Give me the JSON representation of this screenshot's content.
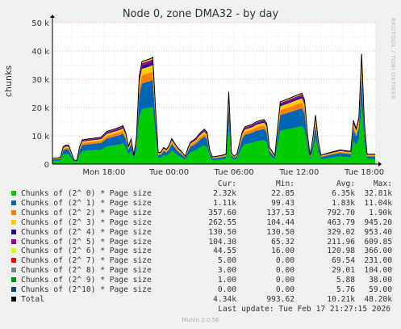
{
  "title": "Node 0, zone DMA32 - by day",
  "ylabel": "chunks",
  "side_text": "RRDTOOL / TOBI OETIKER",
  "chart_data": {
    "type": "area",
    "stacked": true,
    "ylim": [
      0,
      50000
    ],
    "yticks": [
      0,
      10000,
      20000,
      30000,
      40000,
      50000
    ],
    "ytick_labels": [
      "0",
      "10 k",
      "20 k",
      "30 k",
      "40 k",
      "50 k"
    ],
    "xlim": [
      0,
      29.75
    ],
    "xticks": [
      4.75,
      10.75,
      16.75,
      22.75,
      28.75
    ],
    "xtick_labels": [
      "Mon 18:00",
      "Tue 00:00",
      "Tue 06:00",
      "Tue 12:00",
      "Tue 18:00"
    ],
    "grid": true,
    "samples_per_hour": 4,
    "weights": [
      0.53,
      0.25,
      0.08,
      0.06,
      0.03,
      0.024,
      0.01,
      0.003,
      0.003,
      0.001,
      0.0
    ],
    "total_keyframes": [
      [
        0,
        2000
      ],
      [
        0.4,
        2300
      ],
      [
        0.7,
        1800
      ],
      [
        1.0,
        6200
      ],
      [
        1.3,
        6800
      ],
      [
        1.6,
        6500
      ],
      [
        1.9,
        1500
      ],
      [
        2.3,
        1200
      ],
      [
        2.6,
        8500
      ],
      [
        3.5,
        9000
      ],
      [
        4.5,
        9500
      ],
      [
        5.0,
        11500
      ],
      [
        6.2,
        13000
      ],
      [
        6.6,
        13800
      ],
      [
        6.9,
        8500
      ],
      [
        7.1,
        4000
      ],
      [
        7.3,
        10500
      ],
      [
        7.5,
        3000
      ],
      [
        7.8,
        11000
      ],
      [
        8.05,
        36000
      ],
      [
        9.2,
        37500
      ],
      [
        9.4,
        38500
      ],
      [
        9.55,
        10500
      ],
      [
        9.8,
        2500
      ],
      [
        10.2,
        6000
      ],
      [
        10.6,
        5000
      ],
      [
        11.0,
        9000
      ],
      [
        11.5,
        6000
      ],
      [
        12.0,
        4000
      ],
      [
        12.3,
        2500
      ],
      [
        12.6,
        7500
      ],
      [
        13.2,
        9000
      ],
      [
        13.6,
        11000
      ],
      [
        14.2,
        13000
      ],
      [
        14.4,
        6000
      ],
      [
        14.7,
        2500
      ],
      [
        15.5,
        3000
      ],
      [
        16.0,
        3500
      ],
      [
        16.3,
        30000
      ],
      [
        16.5,
        4000
      ],
      [
        16.9,
        2000
      ],
      [
        17.6,
        13000
      ],
      [
        18.4,
        14000
      ],
      [
        18.8,
        15000
      ],
      [
        19.7,
        16000
      ],
      [
        20.0,
        6000
      ],
      [
        20.5,
        3000
      ],
      [
        21.0,
        22000
      ],
      [
        22.0,
        23500
      ],
      [
        22.6,
        24500
      ],
      [
        23.0,
        25000
      ],
      [
        23.3,
        22000
      ],
      [
        23.6,
        5000
      ],
      [
        23.8,
        2500
      ],
      [
        24.3,
        19000
      ],
      [
        24.6,
        3000
      ],
      [
        25.5,
        4000
      ],
      [
        26.5,
        5000
      ],
      [
        27.5,
        4500
      ],
      [
        27.9,
        22000
      ],
      [
        28.1,
        3000
      ],
      [
        28.6,
        48000
      ],
      [
        28.8,
        3500
      ],
      [
        29.75,
        3500
      ]
    ],
    "series": [
      {
        "name": "Chunks of (2^ 0) * Page size",
        "color": "#00cc00"
      },
      {
        "name": "Chunks of (2^ 1) * Page size",
        "color": "#0066b3"
      },
      {
        "name": "Chunks of (2^ 2) * Page size",
        "color": "#ff8000"
      },
      {
        "name": "Chunks of (2^ 3) * Page size",
        "color": "#ffcc00"
      },
      {
        "name": "Chunks of (2^ 4) * Page size",
        "color": "#330099"
      },
      {
        "name": "Chunks of (2^ 5) * Page size",
        "color": "#990099"
      },
      {
        "name": "Chunks of (2^ 6) * Page size",
        "color": "#ccff00"
      },
      {
        "name": "Chunks of (2^ 7) * Page size",
        "color": "#ff0000"
      },
      {
        "name": "Chunks of (2^ 8) * Page size",
        "color": "#808080"
      },
      {
        "name": "Chunks of (2^ 9) * Page size",
        "color": "#008f00"
      },
      {
        "name": "Chunks of (2^10) * Page size",
        "color": "#00487d"
      }
    ],
    "total_series": {
      "name": "Total",
      "color": "#000000"
    }
  },
  "legend": {
    "headers": {
      "cur": "Cur:",
      "min": "Min:",
      "avg": "Avg:",
      "max": "Max:"
    },
    "rows": [
      {
        "name": "Chunks of (2^ 0) * Page size",
        "color": "#00cc00",
        "cur": "2.32k",
        "min": "22.85",
        "avg": "6.35k",
        "max": "32.81k"
      },
      {
        "name": "Chunks of (2^ 1) * Page size",
        "color": "#0066b3",
        "cur": "1.11k",
        "min": "99.43",
        "avg": "1.83k",
        "max": "11.04k"
      },
      {
        "name": "Chunks of (2^ 2) * Page size",
        "color": "#ff8000",
        "cur": "357.60",
        "min": "137.53",
        "avg": "792.70",
        "max": "1.90k"
      },
      {
        "name": "Chunks of (2^ 3) * Page size",
        "color": "#ffcc00",
        "cur": "262.55",
        "min": "104.44",
        "avg": "463.79",
        "max": "945.20"
      },
      {
        "name": "Chunks of (2^ 4) * Page size",
        "color": "#330099",
        "cur": "130.50",
        "min": "130.50",
        "avg": "329.02",
        "max": "953.40"
      },
      {
        "name": "Chunks of (2^ 5) * Page size",
        "color": "#990099",
        "cur": "104.30",
        "min": "65.32",
        "avg": "211.96",
        "max": "609.85"
      },
      {
        "name": "Chunks of (2^ 6) * Page size",
        "color": "#ccff00",
        "cur": "44.55",
        "min": "16.00",
        "avg": "120.98",
        "max": "366.00"
      },
      {
        "name": "Chunks of (2^ 7) * Page size",
        "color": "#ff0000",
        "cur": "5.00",
        "min": "0.00",
        "avg": "69.54",
        "max": "231.00"
      },
      {
        "name": "Chunks of (2^ 8) * Page size",
        "color": "#808080",
        "cur": "3.00",
        "min": "0.00",
        "avg": "29.01",
        "max": "104.00"
      },
      {
        "name": "Chunks of (2^ 9) * Page size",
        "color": "#008f00",
        "cur": "1.00",
        "min": "0.00",
        "avg": "5.88",
        "max": "38.00"
      },
      {
        "name": "Chunks of (2^10) * Page size",
        "color": "#00487d",
        "cur": "0.00",
        "min": "0.00",
        "avg": "5.76",
        "max": "59.00"
      },
      {
        "name": "Total",
        "color": "#000000",
        "cur": "4.34k",
        "min": "993.62",
        "avg": "10.21k",
        "max": "48.20k"
      }
    ]
  },
  "last_update": "Last update: Tue Feb 17 21:27:15 2026",
  "version": "Munin 2.0.56"
}
